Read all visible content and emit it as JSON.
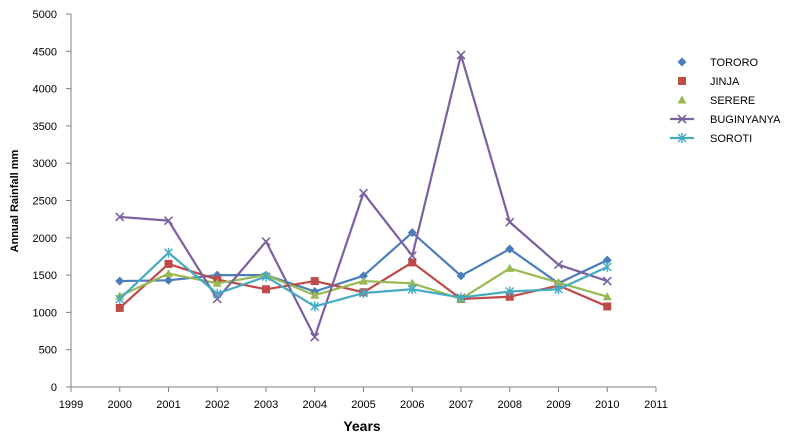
{
  "chart_data": {
    "type": "line",
    "title": "",
    "xlabel": "Years",
    "ylabel": "Annual Rainfall mm",
    "xlim": [
      1999,
      2011
    ],
    "ylim": [
      0,
      5000
    ],
    "x_ticks": [
      "1999",
      "2000",
      "2001",
      "2002",
      "2003",
      "2004",
      "2005",
      "2006",
      "2007",
      "2008",
      "2009",
      "2010",
      "2011"
    ],
    "y_ticks": [
      "0",
      "500",
      "1000",
      "1500",
      "2000",
      "2500",
      "3000",
      "3500",
      "4000",
      "4500",
      "5000"
    ],
    "grid": false,
    "legend_position": "right",
    "x": [
      2000,
      2001,
      2002,
      2003,
      2004,
      2005,
      2006,
      2007,
      2008,
      2009,
      2010
    ],
    "series": [
      {
        "name": "TORORO",
        "color": "#4a7ebb",
        "marker": "diamond",
        "values": [
          1420,
          1430,
          1500,
          1500,
          1280,
          1490,
          2070,
          1490,
          1850,
          1390,
          1700
        ]
      },
      {
        "name": "JINJA",
        "color": "#be4b48",
        "marker": "square",
        "values": [
          1060,
          1650,
          1440,
          1310,
          1420,
          1270,
          1670,
          1180,
          1210,
          1360,
          1080
        ]
      },
      {
        "name": "SERERE",
        "color": "#98b954",
        "marker": "triangle",
        "values": [
          1220,
          1520,
          1390,
          1500,
          1230,
          1420,
          1390,
          1180,
          1590,
          1400,
          1210
        ]
      },
      {
        "name": "BUGINYANYA",
        "color": "#7d60a0",
        "marker": "x",
        "values": [
          2280,
          2230,
          1180,
          1950,
          670,
          2600,
          1760,
          4450,
          2210,
          1640,
          1420
        ]
      },
      {
        "name": "SOROTI",
        "color": "#46aac5",
        "marker": "asterisk",
        "values": [
          1180,
          1800,
          1250,
          1480,
          1080,
          1260,
          1310,
          1200,
          1280,
          1310,
          1610
        ]
      }
    ]
  }
}
